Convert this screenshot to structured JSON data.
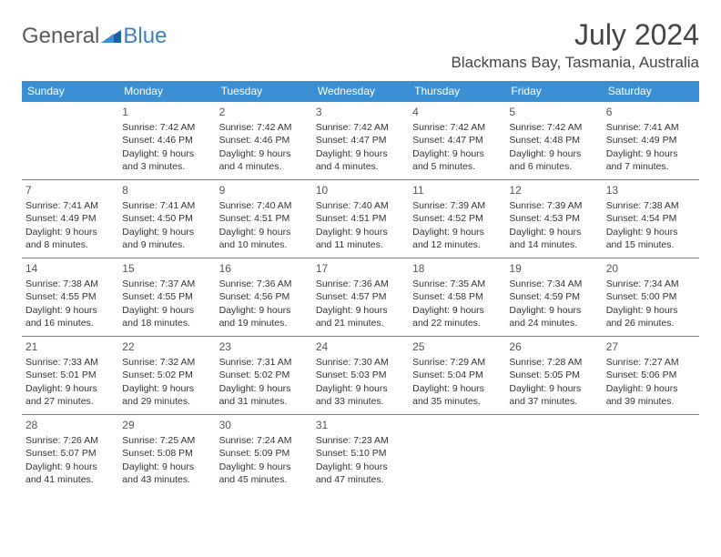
{
  "logo": {
    "word1": "General",
    "word2": "Blue"
  },
  "title": "July 2024",
  "location": "Blackmans Bay, Tasmania, Australia",
  "colors": {
    "header_bg": "#3b8fd4",
    "header_text": "#ffffff",
    "cell_border": "#3b8fd4",
    "text": "#333333",
    "logo_gray": "#5a5a5a",
    "logo_blue": "#3b7fc4"
  },
  "day_headers": [
    "Sunday",
    "Monday",
    "Tuesday",
    "Wednesday",
    "Thursday",
    "Friday",
    "Saturday"
  ],
  "weeks": [
    [
      null,
      {
        "n": "1",
        "sr": "Sunrise: 7:42 AM",
        "ss": "Sunset: 4:46 PM",
        "d1": "Daylight: 9 hours",
        "d2": "and 3 minutes."
      },
      {
        "n": "2",
        "sr": "Sunrise: 7:42 AM",
        "ss": "Sunset: 4:46 PM",
        "d1": "Daylight: 9 hours",
        "d2": "and 4 minutes."
      },
      {
        "n": "3",
        "sr": "Sunrise: 7:42 AM",
        "ss": "Sunset: 4:47 PM",
        "d1": "Daylight: 9 hours",
        "d2": "and 4 minutes."
      },
      {
        "n": "4",
        "sr": "Sunrise: 7:42 AM",
        "ss": "Sunset: 4:47 PM",
        "d1": "Daylight: 9 hours",
        "d2": "and 5 minutes."
      },
      {
        "n": "5",
        "sr": "Sunrise: 7:42 AM",
        "ss": "Sunset: 4:48 PM",
        "d1": "Daylight: 9 hours",
        "d2": "and 6 minutes."
      },
      {
        "n": "6",
        "sr": "Sunrise: 7:41 AM",
        "ss": "Sunset: 4:49 PM",
        "d1": "Daylight: 9 hours",
        "d2": "and 7 minutes."
      }
    ],
    [
      {
        "n": "7",
        "sr": "Sunrise: 7:41 AM",
        "ss": "Sunset: 4:49 PM",
        "d1": "Daylight: 9 hours",
        "d2": "and 8 minutes."
      },
      {
        "n": "8",
        "sr": "Sunrise: 7:41 AM",
        "ss": "Sunset: 4:50 PM",
        "d1": "Daylight: 9 hours",
        "d2": "and 9 minutes."
      },
      {
        "n": "9",
        "sr": "Sunrise: 7:40 AM",
        "ss": "Sunset: 4:51 PM",
        "d1": "Daylight: 9 hours",
        "d2": "and 10 minutes."
      },
      {
        "n": "10",
        "sr": "Sunrise: 7:40 AM",
        "ss": "Sunset: 4:51 PM",
        "d1": "Daylight: 9 hours",
        "d2": "and 11 minutes."
      },
      {
        "n": "11",
        "sr": "Sunrise: 7:39 AM",
        "ss": "Sunset: 4:52 PM",
        "d1": "Daylight: 9 hours",
        "d2": "and 12 minutes."
      },
      {
        "n": "12",
        "sr": "Sunrise: 7:39 AM",
        "ss": "Sunset: 4:53 PM",
        "d1": "Daylight: 9 hours",
        "d2": "and 14 minutes."
      },
      {
        "n": "13",
        "sr": "Sunrise: 7:38 AM",
        "ss": "Sunset: 4:54 PM",
        "d1": "Daylight: 9 hours",
        "d2": "and 15 minutes."
      }
    ],
    [
      {
        "n": "14",
        "sr": "Sunrise: 7:38 AM",
        "ss": "Sunset: 4:55 PM",
        "d1": "Daylight: 9 hours",
        "d2": "and 16 minutes."
      },
      {
        "n": "15",
        "sr": "Sunrise: 7:37 AM",
        "ss": "Sunset: 4:55 PM",
        "d1": "Daylight: 9 hours",
        "d2": "and 18 minutes."
      },
      {
        "n": "16",
        "sr": "Sunrise: 7:36 AM",
        "ss": "Sunset: 4:56 PM",
        "d1": "Daylight: 9 hours",
        "d2": "and 19 minutes."
      },
      {
        "n": "17",
        "sr": "Sunrise: 7:36 AM",
        "ss": "Sunset: 4:57 PM",
        "d1": "Daylight: 9 hours",
        "d2": "and 21 minutes."
      },
      {
        "n": "18",
        "sr": "Sunrise: 7:35 AM",
        "ss": "Sunset: 4:58 PM",
        "d1": "Daylight: 9 hours",
        "d2": "and 22 minutes."
      },
      {
        "n": "19",
        "sr": "Sunrise: 7:34 AM",
        "ss": "Sunset: 4:59 PM",
        "d1": "Daylight: 9 hours",
        "d2": "and 24 minutes."
      },
      {
        "n": "20",
        "sr": "Sunrise: 7:34 AM",
        "ss": "Sunset: 5:00 PM",
        "d1": "Daylight: 9 hours",
        "d2": "and 26 minutes."
      }
    ],
    [
      {
        "n": "21",
        "sr": "Sunrise: 7:33 AM",
        "ss": "Sunset: 5:01 PM",
        "d1": "Daylight: 9 hours",
        "d2": "and 27 minutes."
      },
      {
        "n": "22",
        "sr": "Sunrise: 7:32 AM",
        "ss": "Sunset: 5:02 PM",
        "d1": "Daylight: 9 hours",
        "d2": "and 29 minutes."
      },
      {
        "n": "23",
        "sr": "Sunrise: 7:31 AM",
        "ss": "Sunset: 5:02 PM",
        "d1": "Daylight: 9 hours",
        "d2": "and 31 minutes."
      },
      {
        "n": "24",
        "sr": "Sunrise: 7:30 AM",
        "ss": "Sunset: 5:03 PM",
        "d1": "Daylight: 9 hours",
        "d2": "and 33 minutes."
      },
      {
        "n": "25",
        "sr": "Sunrise: 7:29 AM",
        "ss": "Sunset: 5:04 PM",
        "d1": "Daylight: 9 hours",
        "d2": "and 35 minutes."
      },
      {
        "n": "26",
        "sr": "Sunrise: 7:28 AM",
        "ss": "Sunset: 5:05 PM",
        "d1": "Daylight: 9 hours",
        "d2": "and 37 minutes."
      },
      {
        "n": "27",
        "sr": "Sunrise: 7:27 AM",
        "ss": "Sunset: 5:06 PM",
        "d1": "Daylight: 9 hours",
        "d2": "and 39 minutes."
      }
    ],
    [
      {
        "n": "28",
        "sr": "Sunrise: 7:26 AM",
        "ss": "Sunset: 5:07 PM",
        "d1": "Daylight: 9 hours",
        "d2": "and 41 minutes."
      },
      {
        "n": "29",
        "sr": "Sunrise: 7:25 AM",
        "ss": "Sunset: 5:08 PM",
        "d1": "Daylight: 9 hours",
        "d2": "and 43 minutes."
      },
      {
        "n": "30",
        "sr": "Sunrise: 7:24 AM",
        "ss": "Sunset: 5:09 PM",
        "d1": "Daylight: 9 hours",
        "d2": "and 45 minutes."
      },
      {
        "n": "31",
        "sr": "Sunrise: 7:23 AM",
        "ss": "Sunset: 5:10 PM",
        "d1": "Daylight: 9 hours",
        "d2": "and 47 minutes."
      },
      null,
      null,
      null
    ]
  ]
}
